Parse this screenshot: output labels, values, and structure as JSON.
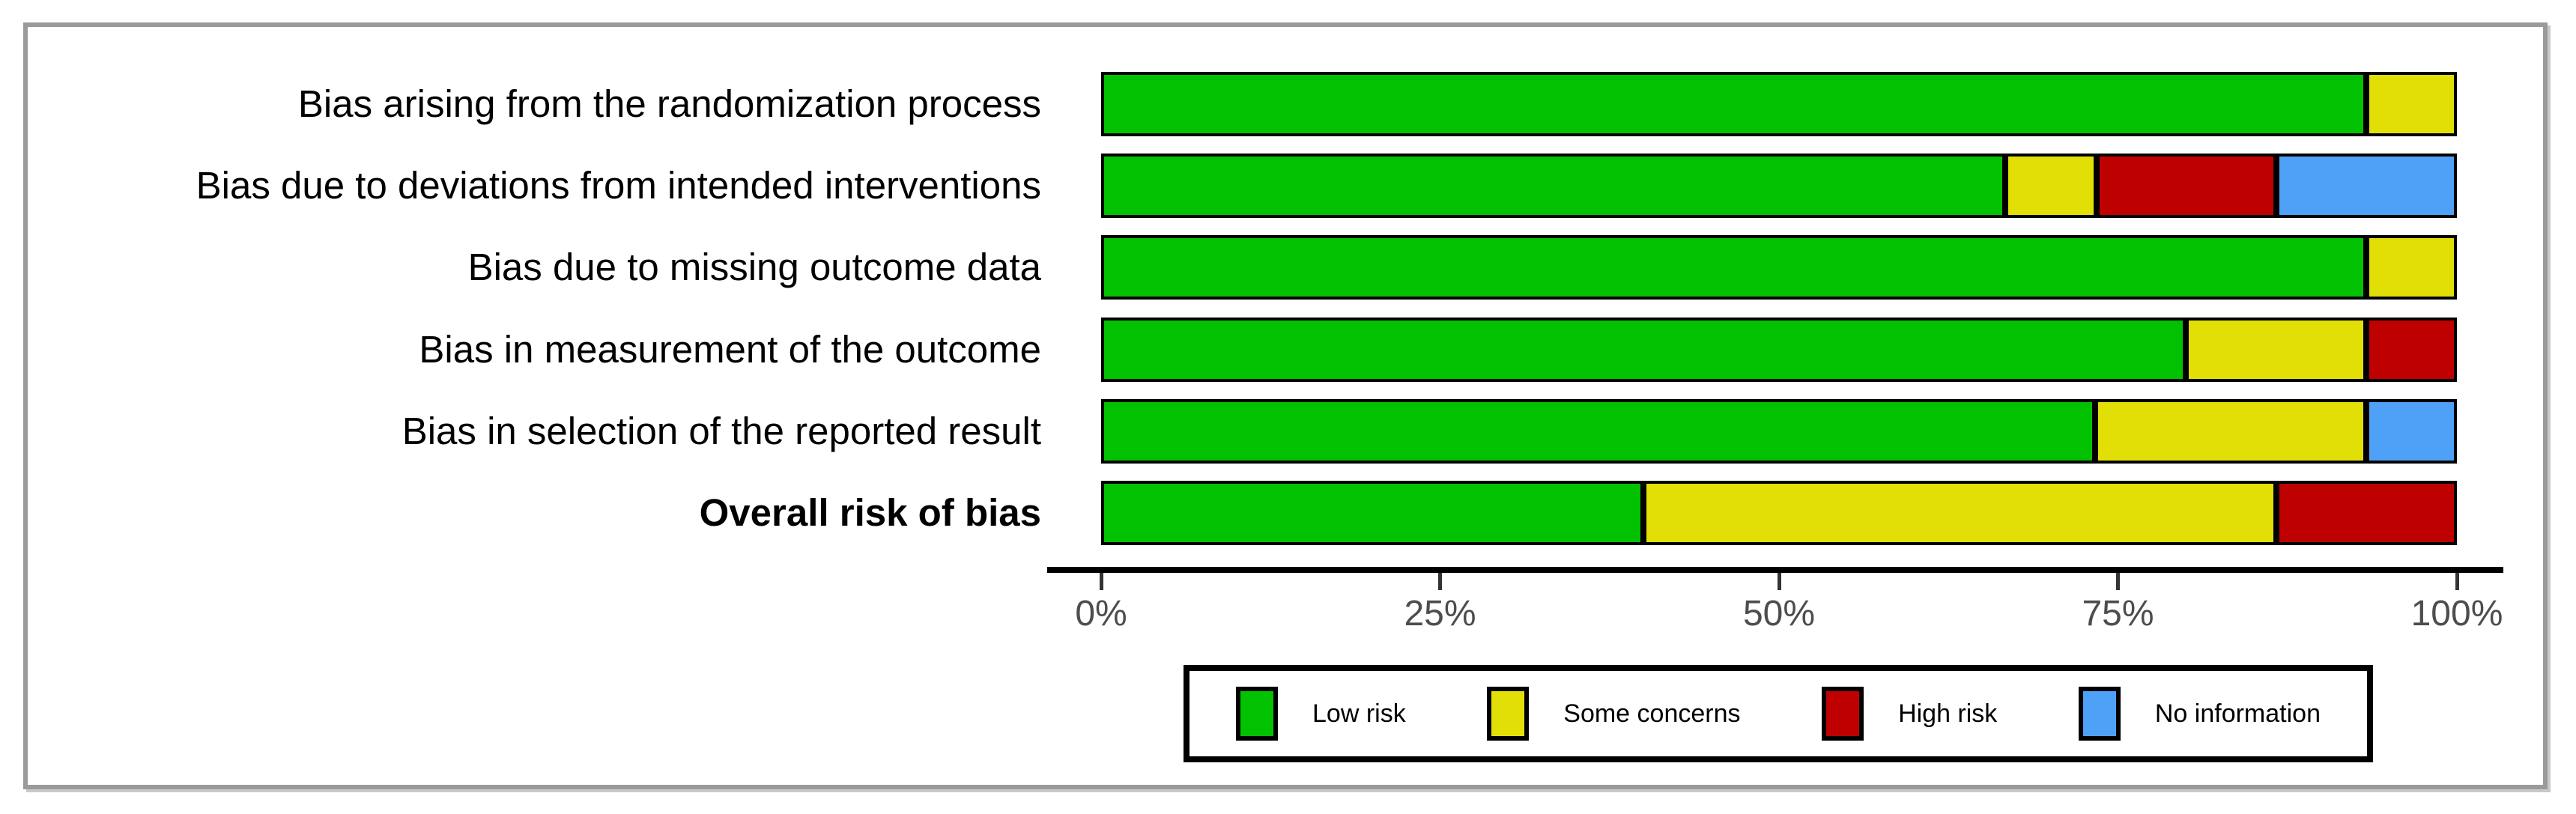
{
  "frame": {
    "border_color": "#9a9a9a",
    "background": "#ffffff"
  },
  "chart_data": {
    "type": "bar",
    "variant": "horizontal_stacked_percent",
    "title": "",
    "xlabel": "",
    "ylabel": "",
    "xlim": [
      0,
      100
    ],
    "x_ticks": [
      "0%",
      "25%",
      "50%",
      "75%",
      "100%"
    ],
    "x_tick_values": [
      0,
      25,
      50,
      75,
      100
    ],
    "grid": false,
    "legend_position": "bottom",
    "categories": [
      "Bias arising from the randomization process",
      "Bias due to deviations from intended interventions",
      "Bias due to missing outcome data",
      "Bias in measurement of the outcome",
      "Bias in selection of the reported result",
      "Overall risk of bias"
    ],
    "bold_category_index": 5,
    "series": [
      {
        "name": "Low risk",
        "color": "#02c100",
        "values": [
          93.3,
          66.7,
          93.3,
          80.0,
          73.3,
          40.0
        ]
      },
      {
        "name": "Some concerns",
        "color": "#e2df07",
        "values": [
          6.7,
          6.7,
          6.7,
          13.3,
          20.0,
          46.7
        ]
      },
      {
        "name": "High risk",
        "color": "#bf0000",
        "values": [
          0,
          13.3,
          0,
          6.7,
          0,
          13.3
        ]
      },
      {
        "name": "No information",
        "color": "#4ea1f7",
        "values": [
          0,
          13.3,
          0,
          0,
          6.7,
          0
        ]
      }
    ]
  }
}
